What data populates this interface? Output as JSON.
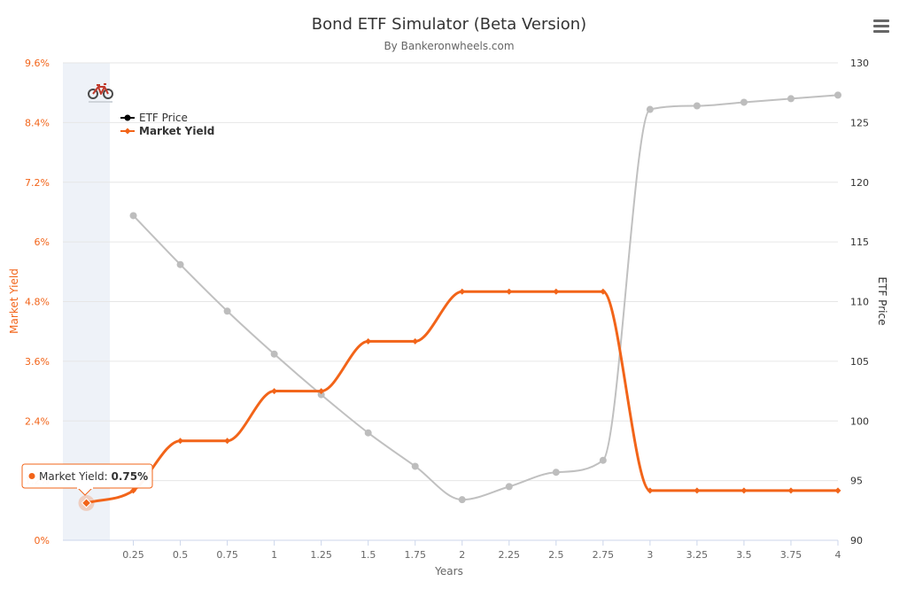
{
  "chart_data": {
    "type": "line",
    "title": "Bond ETF Simulator (Beta Version)",
    "subtitle": "By Bankeronwheels.com",
    "xlabel": "Years",
    "categories": [
      "0",
      "0.25",
      "0.5",
      "0.75",
      "1",
      "1.25",
      "1.5",
      "1.75",
      "2",
      "2.25",
      "2.5",
      "2.75",
      "3",
      "3.25",
      "3.5",
      "3.75",
      "4"
    ],
    "x_tick_labels": [
      "0.25",
      "0.5",
      "0.75",
      "1",
      "1.25",
      "1.5",
      "1.75",
      "2",
      "2.25",
      "2.5",
      "2.75",
      "3",
      "3.25",
      "3.5",
      "3.75",
      "4"
    ],
    "y_left": {
      "label": "Market Yield",
      "ylim": [
        0,
        9.6
      ],
      "ticks": [
        "0%",
        "1.2%",
        "2.4%",
        "3.6%",
        "4.8%",
        "6%",
        "7.2%",
        "8.4%",
        "9.6%"
      ],
      "color": "#f26419"
    },
    "y_right": {
      "label": "ETF Price",
      "ylim": [
        90,
        130
      ],
      "ticks": [
        "90",
        "95",
        "100",
        "105",
        "110",
        "115",
        "120",
        "125",
        "130"
      ],
      "color": "#333333"
    },
    "grid": true,
    "legend_position": "top-left",
    "series": [
      {
        "name": "ETF Price",
        "axis": "right",
        "color": "#c0c0c0",
        "legend_color": "#000000",
        "x": [
          "0.25",
          "0.5",
          "0.75",
          "1",
          "1.25",
          "1.5",
          "1.75",
          "2",
          "2.25",
          "2.5",
          "2.75",
          "3",
          "3.25",
          "3.5",
          "3.75",
          "4"
        ],
        "values": [
          117.2,
          113.1,
          109.2,
          105.6,
          102.2,
          99.0,
          96.2,
          93.4,
          94.5,
          95.7,
          96.7,
          126.1,
          126.4,
          126.7,
          127.0,
          127.3
        ]
      },
      {
        "name": "Market Yield",
        "axis": "left",
        "color": "#f26419",
        "x": [
          "0",
          "0.25",
          "0.5",
          "0.75",
          "1",
          "1.25",
          "1.5",
          "1.75",
          "2",
          "2.25",
          "2.5",
          "2.75",
          "3",
          "3.25",
          "3.5",
          "3.75",
          "4"
        ],
        "values": [
          0.75,
          1.0,
          2.0,
          2.0,
          3.0,
          3.0,
          4.0,
          4.0,
          5.0,
          5.0,
          5.0,
          5.0,
          1.0,
          1.0,
          1.0,
          1.0,
          1.0
        ]
      }
    ],
    "tooltip": {
      "series": "Market Yield",
      "label": "Market Yield: ",
      "value": "0.75%",
      "point_index": 0
    },
    "highlight_band": {
      "x_from": "0",
      "x_to": "0"
    }
  }
}
